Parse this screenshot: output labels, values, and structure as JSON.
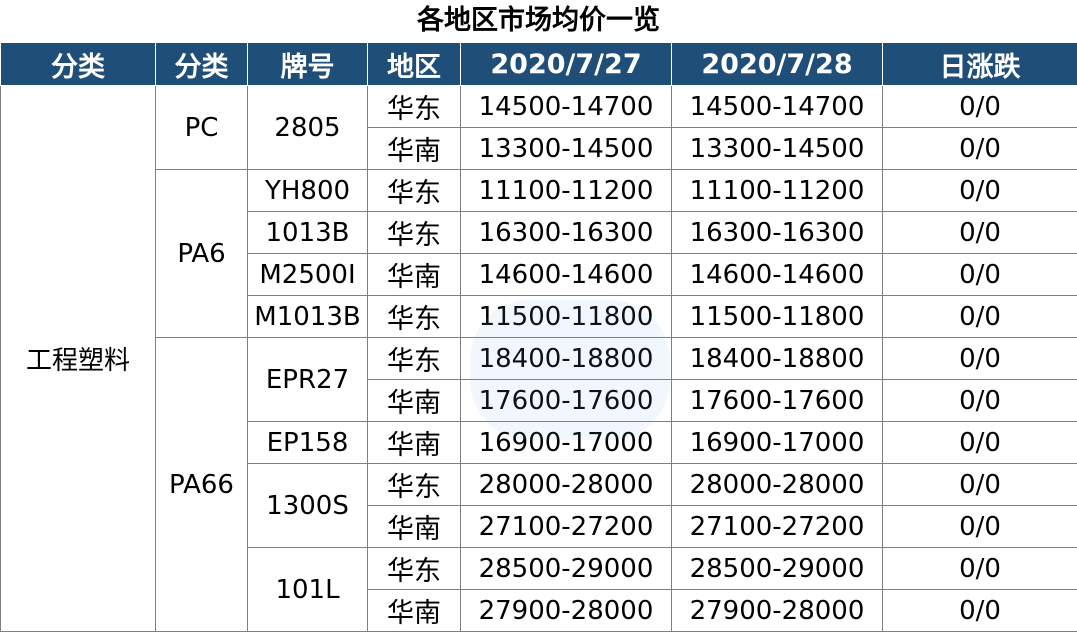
{
  "title": "各地区市场均价一览",
  "headers": [
    "分类",
    "分类",
    "牌号",
    "地区",
    "2020/7/27",
    "2020/7/28",
    "日涨跌"
  ],
  "category": "工程塑料",
  "groups": [
    {
      "subcategory": "PC",
      "grades": [
        {
          "grade": "2805",
          "rows": [
            {
              "region": "华东",
              "price_0727": "14500-14700",
              "price_0728": "14500-14700",
              "change": "0/0"
            },
            {
              "region": "华南",
              "price_0727": "13300-14500",
              "price_0728": "13300-14500",
              "change": "0/0"
            }
          ]
        }
      ]
    },
    {
      "subcategory": "PA6",
      "grades": [
        {
          "grade": "YH800",
          "rows": [
            {
              "region": "华东",
              "price_0727": "11100-11200",
              "price_0728": "11100-11200",
              "change": "0/0"
            }
          ]
        },
        {
          "grade": "1013B",
          "rows": [
            {
              "region": "华东",
              "price_0727": "16300-16300",
              "price_0728": "16300-16300",
              "change": "0/0"
            }
          ]
        },
        {
          "grade": "M2500I",
          "rows": [
            {
              "region": "华南",
              "price_0727": "14600-14600",
              "price_0728": "14600-14600",
              "change": "0/0"
            }
          ]
        },
        {
          "grade": "M1013B",
          "rows": [
            {
              "region": "华东",
              "price_0727": "11500-11800",
              "price_0728": "11500-11800",
              "change": "0/0"
            }
          ]
        }
      ]
    },
    {
      "subcategory": "PA66",
      "grades": [
        {
          "grade": "EPR27",
          "rows": [
            {
              "region": "华东",
              "price_0727": "18400-18800",
              "price_0728": "18400-18800",
              "change": "0/0"
            },
            {
              "region": "华南",
              "price_0727": "17600-17600",
              "price_0728": "17600-17600",
              "change": "0/0"
            }
          ]
        },
        {
          "grade": "EP158",
          "rows": [
            {
              "region": "华南",
              "price_0727": "16900-17000",
              "price_0728": "16900-17000",
              "change": "0/0"
            }
          ]
        },
        {
          "grade": "1300S",
          "rows": [
            {
              "region": "华东",
              "price_0727": "28000-28000",
              "price_0728": "28000-28000",
              "change": "0/0"
            },
            {
              "region": "华南",
              "price_0727": "27100-27200",
              "price_0728": "27100-27200",
              "change": "0/0"
            }
          ]
        },
        {
          "grade": "101L",
          "rows": [
            {
              "region": "华东",
              "price_0727": "28500-29000",
              "price_0728": "28500-29000",
              "change": "0/0"
            },
            {
              "region": "华南",
              "price_0727": "27900-28000",
              "price_0728": "27900-28000",
              "change": "0/0"
            }
          ]
        }
      ]
    }
  ]
}
